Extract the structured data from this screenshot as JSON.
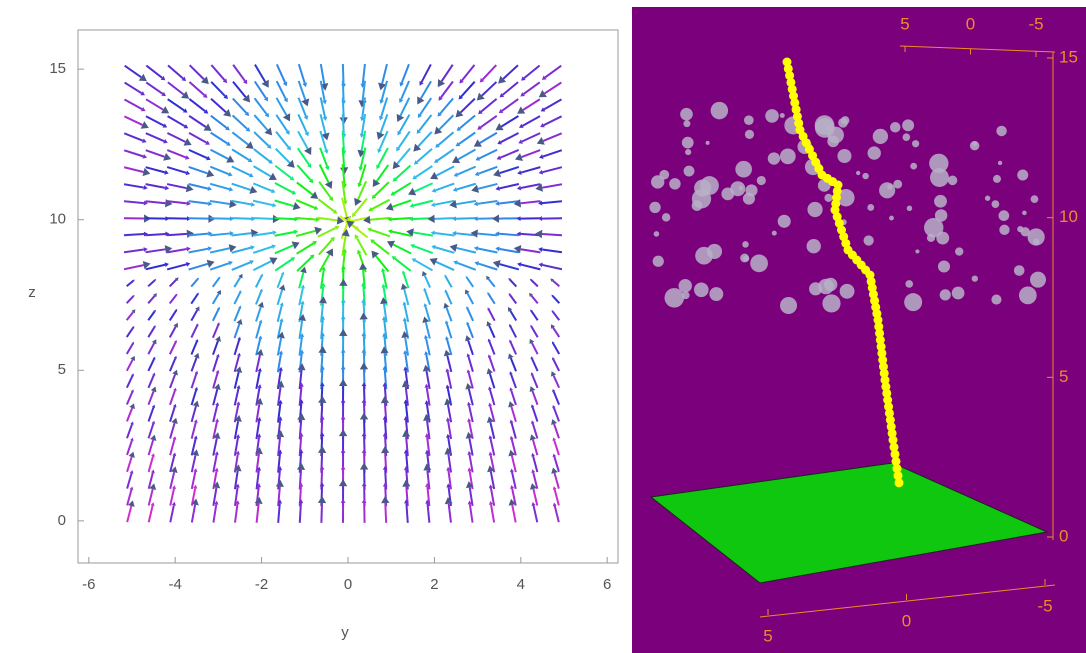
{
  "chart_data": [
    {
      "type": "streamplot",
      "xlabel": "y",
      "ylabel": "z",
      "xlim": [
        -6.25,
        6.25
      ],
      "ylim": [
        -1.4,
        16.3
      ],
      "xticks": [
        -6,
        -4,
        -2,
        0,
        2,
        4,
        6
      ],
      "yticks": [
        0,
        5,
        10,
        15
      ]
    },
    {
      "type": "scatter3d",
      "background": "#7b007b",
      "plane_color": "#0fc70f",
      "path_color": "#ffff00",
      "sphere_color": "#b8b0c8",
      "axis_color": "#f08a2c",
      "xlim": [
        5,
        -5
      ],
      "xticks": [
        5,
        0,
        -5
      ],
      "ylim": [
        5,
        -5
      ],
      "yticks": [
        5,
        0,
        -5
      ],
      "zlim": [
        0,
        15
      ],
      "zticks": [
        0,
        5,
        10,
        15
      ]
    }
  ]
}
